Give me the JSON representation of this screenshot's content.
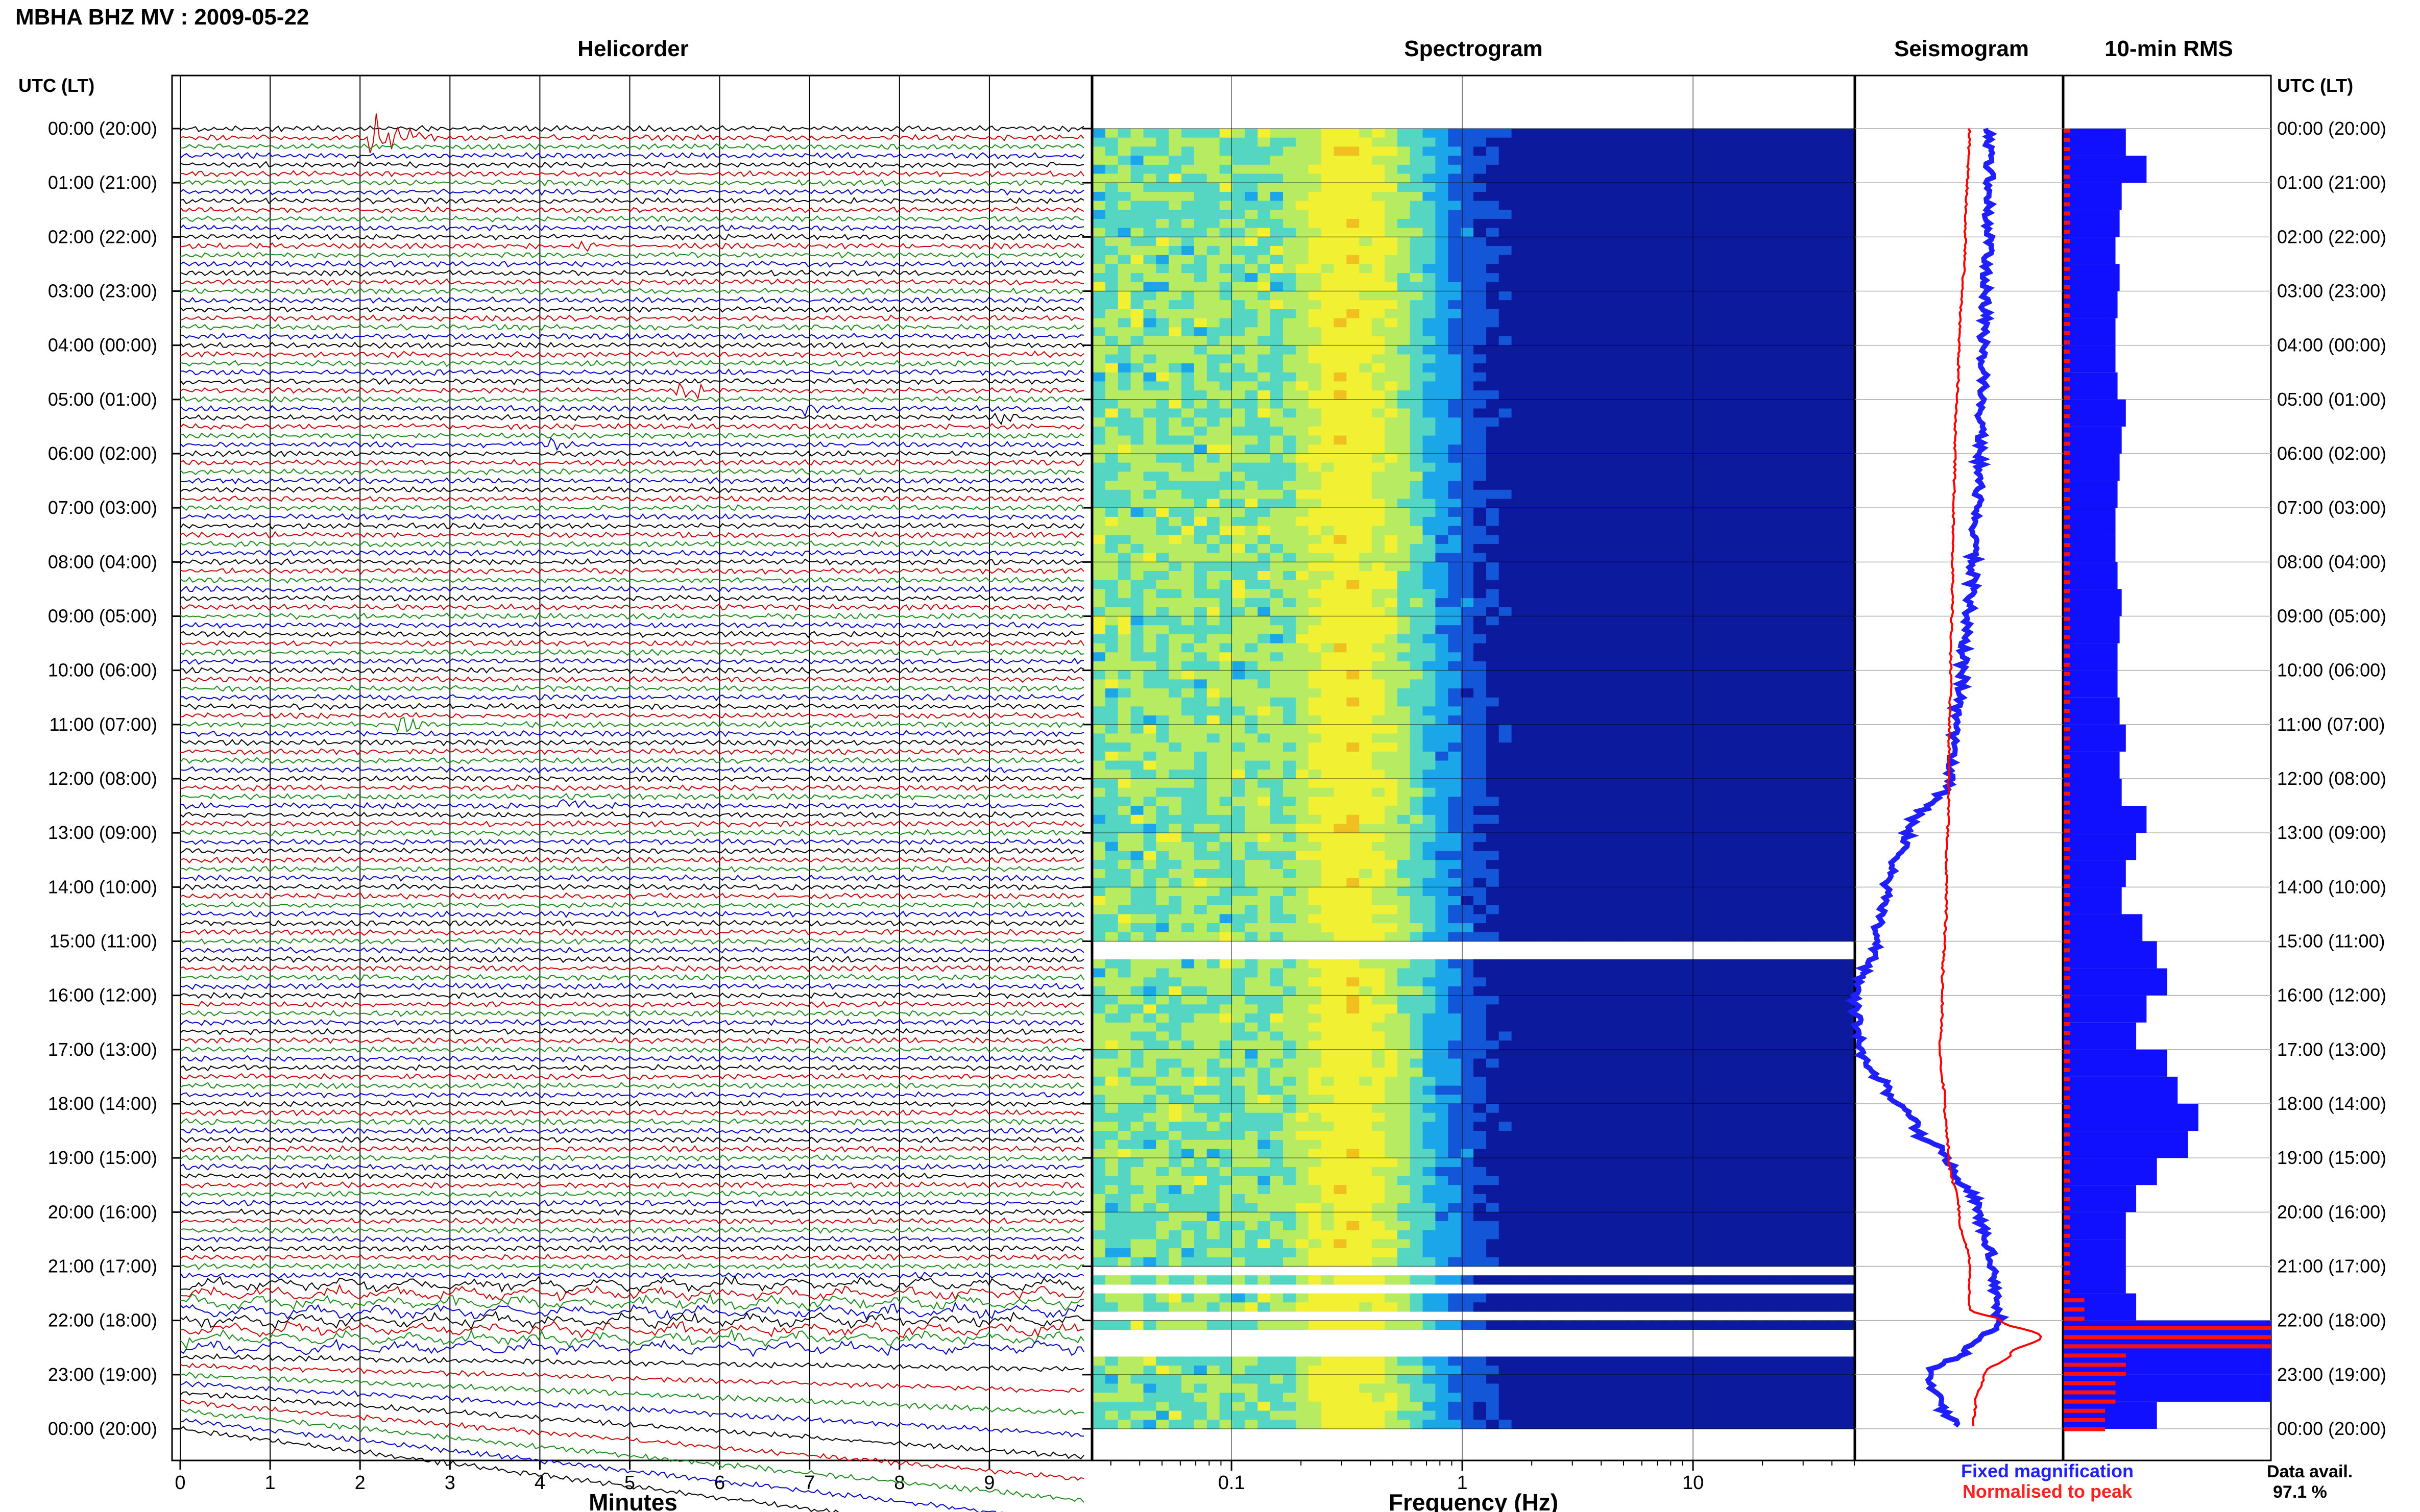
{
  "header": {
    "title": "MBHA BHZ MV : 2009-05-22"
  },
  "panels": {
    "helicorder": "Helicorder",
    "spectrogram": "Spectrogram",
    "seismogram": "Seismogram",
    "rms": "10-min RMS"
  },
  "axis": {
    "left_title": "UTC (LT)",
    "right_title": "UTC (LT)",
    "helicorder_xlabel": "Minutes",
    "spectrogram_xlabel": "Frequency (Hz)",
    "time_labels": [
      "00:00 (20:00)",
      "01:00 (21:00)",
      "02:00 (22:00)",
      "03:00 (23:00)",
      "04:00 (00:00)",
      "05:00 (01:00)",
      "06:00 (02:00)",
      "07:00 (03:00)",
      "08:00 (04:00)",
      "09:00 (05:00)",
      "10:00 (06:00)",
      "11:00 (07:00)",
      "12:00 (08:00)",
      "13:00 (09:00)",
      "14:00 (10:00)",
      "15:00 (11:00)",
      "16:00 (12:00)",
      "17:00 (13:00)",
      "18:00 (14:00)",
      "19:00 (15:00)",
      "20:00 (16:00)",
      "21:00 (17:00)",
      "22:00 (18:00)",
      "23:00 (19:00)",
      "00:00 (20:00)"
    ],
    "minute_ticks": [
      "0",
      "1",
      "2",
      "3",
      "4",
      "5",
      "6",
      "7",
      "8",
      "9"
    ],
    "freq_ticks": [
      "0.1",
      "1",
      "10"
    ]
  },
  "legend": {
    "fixed": "Fixed magnification",
    "normalised": "Normalised to peak",
    "data_avail_label": "Data avail.",
    "data_avail_value": "97.1 %"
  },
  "colors": {
    "trace_cycle": [
      "#000000",
      "#cc0000",
      "#1a8c1a",
      "#0000cc"
    ],
    "fixed": "#1f1fff",
    "normalised": "#ff0000",
    "rms_fixed": "#1010ff",
    "rms_norm": "#ff1010"
  },
  "chart_data": [
    {
      "type": "line",
      "title": "Helicorder",
      "xlabel": "Minutes",
      "xlim": [
        0,
        10
      ],
      "ylim": [
        "00:00",
        "24:00"
      ],
      "rows_per_hour": 6,
      "gaps_hours": [
        [
          14.95,
          15.0
        ]
      ],
      "events": [
        {
          "hour": 0.1,
          "minute": 2.1,
          "amp": 5
        },
        {
          "hour": 2.2,
          "minute": 4.4,
          "amp": 1.2
        },
        {
          "hour": 4.85,
          "minute": 5.5,
          "amp": 2
        },
        {
          "hour": 5.2,
          "minute": 6.8,
          "amp": 1.5
        },
        {
          "hour": 5.35,
          "minute": 9.0,
          "amp": 1.5
        },
        {
          "hour": 5.8,
          "minute": 4.1,
          "amp": 1.2
        },
        {
          "hour": 11.0,
          "minute": 2.4,
          "amp": 1.5
        },
        {
          "hour": 12.5,
          "minute": 4.2,
          "amp": 2.5
        }
      ]
    },
    {
      "type": "heatmap",
      "title": "Spectrogram",
      "xlabel": "Frequency (Hz)",
      "xscale": "log",
      "xlim": [
        0.025,
        50
      ],
      "peak_frequency_hz": 0.3,
      "gaps_hours": [
        [
          14.95,
          15.2
        ],
        [
          20.95,
          21.05
        ],
        [
          21.2,
          21.4
        ],
        [
          21.7,
          21.85
        ],
        [
          22.05,
          22.6
        ]
      ],
      "colormap": [
        "#0c1b9e",
        "#1456d8",
        "#1aa6e8",
        "#55d6c2",
        "#b7ec62",
        "#f2f032",
        "#f0c020"
      ]
    },
    {
      "type": "line",
      "title": "Seismogram",
      "series": [
        {
          "name": "Fixed magnification",
          "hours": [
            0,
            2,
            4,
            6,
            8,
            10,
            11,
            12,
            13,
            14,
            15,
            16,
            17,
            17.3,
            17.7,
            18.5,
            19,
            20,
            21,
            21.8,
            22,
            22.5,
            23,
            23.5,
            24
          ],
          "values": [
            0.65,
            0.64,
            0.62,
            0.6,
            0.57,
            0.52,
            0.48,
            0.45,
            0.25,
            0.15,
            0.1,
            0.0,
            0.02,
            0.05,
            0.15,
            0.3,
            0.45,
            0.6,
            0.66,
            0.68,
            0.7,
            0.55,
            0.35,
            0.4,
            0.5
          ]
        },
        {
          "name": "Normalised to peak",
          "hours": [
            0,
            2,
            4,
            6,
            8,
            10,
            12,
            14,
            16,
            17,
            18,
            19,
            20,
            21,
            21.8,
            22,
            22.3,
            22.6,
            23,
            23.5,
            24
          ],
          "values": [
            0.55,
            0.53,
            0.5,
            0.48,
            0.47,
            0.46,
            0.45,
            0.44,
            0.42,
            0.41,
            0.43,
            0.45,
            0.5,
            0.55,
            0.55,
            0.7,
            0.9,
            0.75,
            0.62,
            0.58,
            0.57
          ]
        }
      ]
    },
    {
      "type": "bar",
      "title": "10-min RMS",
      "series": [
        {
          "name": "Fixed magnification",
          "hours": [
            0,
            0.5,
            1,
            1.5,
            2,
            2.5,
            3,
            3.5,
            4,
            4.5,
            5,
            5.5,
            6,
            6.5,
            7,
            7.5,
            8,
            8.5,
            9,
            9.5,
            10,
            10.5,
            11,
            11.5,
            12,
            12.5,
            13,
            13.5,
            14,
            14.5,
            15,
            15.5,
            16,
            16.5,
            17,
            17.5,
            18,
            18.5,
            19,
            19.5,
            20,
            20.5,
            21,
            21.5,
            22,
            22.5,
            23,
            23.5
          ],
          "values": [
            0.3,
            0.4,
            0.28,
            0.27,
            0.25,
            0.27,
            0.26,
            0.25,
            0.25,
            0.26,
            0.3,
            0.28,
            0.27,
            0.26,
            0.25,
            0.25,
            0.26,
            0.28,
            0.27,
            0.26,
            0.26,
            0.27,
            0.3,
            0.27,
            0.28,
            0.4,
            0.35,
            0.3,
            0.28,
            0.38,
            0.45,
            0.5,
            0.4,
            0.35,
            0.5,
            0.55,
            0.65,
            0.6,
            0.45,
            0.35,
            0.3,
            0.3,
            0.3,
            0.35,
            1.0,
            1.0,
            1.0,
            0.45
          ]
        },
        {
          "name": "Normalised to peak",
          "hours": [
            0,
            4,
            8,
            12,
            16,
            20,
            21.5,
            22,
            22.5,
            23,
            23.5
          ],
          "values": [
            0.03,
            0.03,
            0.03,
            0.03,
            0.03,
            0.03,
            0.1,
            1.0,
            0.3,
            0.25,
            0.2
          ]
        }
      ]
    }
  ]
}
